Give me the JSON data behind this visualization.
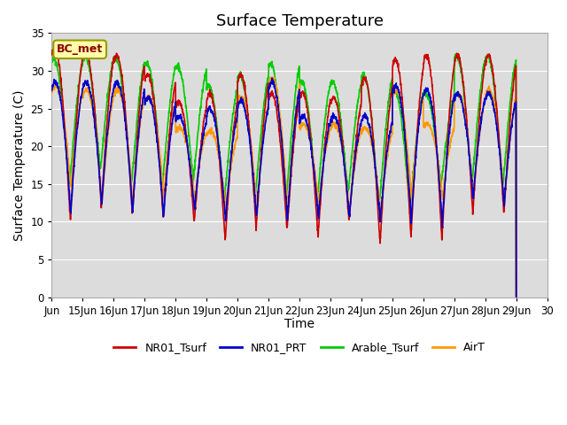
{
  "title": "Surface Temperature",
  "xlabel": "Time",
  "ylabel": "Surface Temperature (C)",
  "ylim": [
    0,
    35
  ],
  "yticks": [
    0,
    5,
    10,
    15,
    20,
    25,
    30,
    35
  ],
  "annotation": "BC_met",
  "line_colors": {
    "NR01_Tsurf": "#CC0000",
    "NR01_PRT": "#0000CC",
    "Arable_Tsurf": "#00CC00",
    "AirT": "#FF9900"
  },
  "xtick_labels": [
    "Jun",
    "15Jun",
    "16Jun",
    "17Jun",
    "18Jun",
    "19Jun",
    "20Jun",
    "21Jun",
    "22Jun",
    "23Jun",
    "24Jun",
    "25Jun",
    "26Jun",
    "27Jun",
    "28Jun",
    "29Jun",
    "30"
  ],
  "background_color": "#DCDCDC",
  "grid_color": "#C8C8C8",
  "title_fontsize": 13,
  "axis_label_fontsize": 10,
  "tick_fontsize": 8.5
}
